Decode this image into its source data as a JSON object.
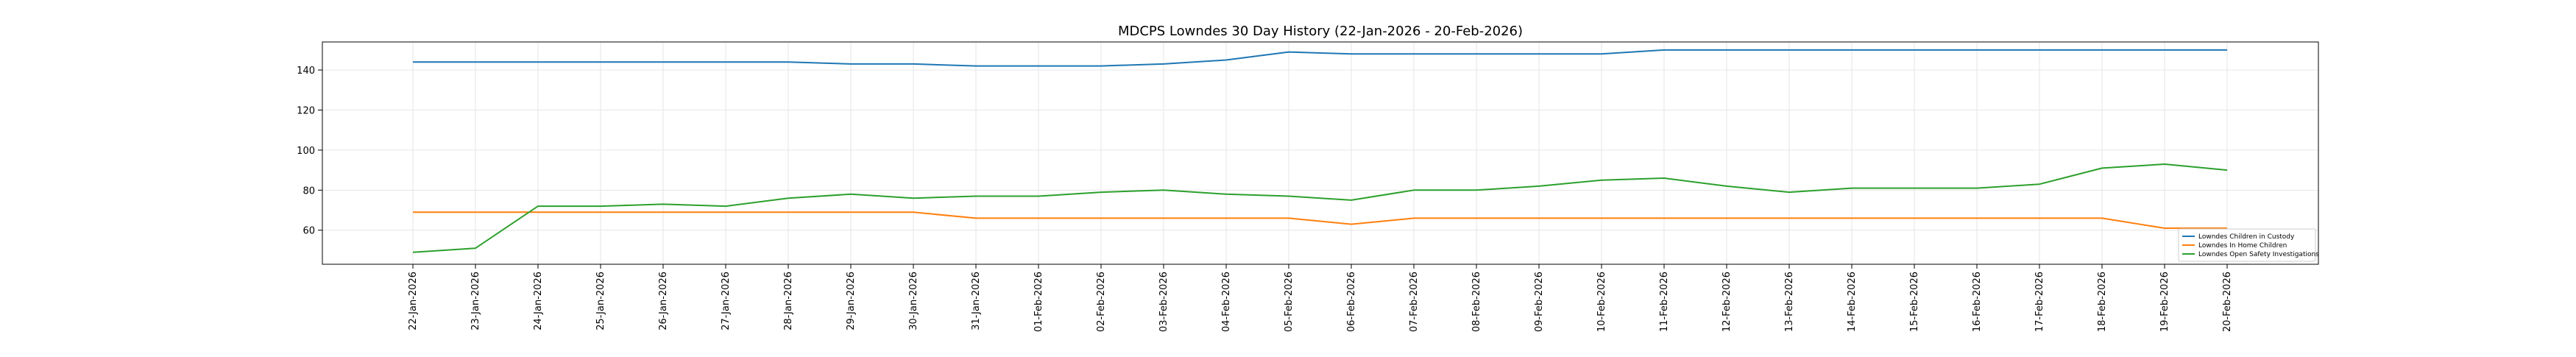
{
  "chart_data": {
    "type": "line",
    "title": "MDCPS Lowndes 30 Day History (22-Jan-2026 - 20-Feb-2026)",
    "xlabel": "",
    "ylabel": "",
    "x": [
      "22-Jan-2026",
      "23-Jan-2026",
      "24-Jan-2026",
      "25-Jan-2026",
      "26-Jan-2026",
      "27-Jan-2026",
      "28-Jan-2026",
      "29-Jan-2026",
      "30-Jan-2026",
      "31-Jan-2026",
      "01-Feb-2026",
      "02-Feb-2026",
      "03-Feb-2026",
      "04-Feb-2026",
      "05-Feb-2026",
      "06-Feb-2026",
      "07-Feb-2026",
      "08-Feb-2026",
      "09-Feb-2026",
      "10-Feb-2026",
      "11-Feb-2026",
      "12-Feb-2026",
      "13-Feb-2026",
      "14-Feb-2026",
      "15-Feb-2026",
      "16-Feb-2026",
      "17-Feb-2026",
      "18-Feb-2026",
      "19-Feb-2026",
      "20-Feb-2026"
    ],
    "ylim": [
      43,
      154
    ],
    "yticks": [
      60,
      80,
      100,
      120,
      140
    ],
    "grid": true,
    "legend_position": "lower-right",
    "series": [
      {
        "name": "Lowndes Children in Custody",
        "color": "#1f77b4",
        "values": [
          144,
          144,
          144,
          144,
          144,
          144,
          144,
          143,
          143,
          142,
          142,
          142,
          143,
          145,
          149,
          148,
          148,
          148,
          148,
          148,
          150,
          150,
          150,
          150,
          150,
          150,
          150,
          150,
          150,
          150
        ]
      },
      {
        "name": "Lowndes In Home Children",
        "color": "#ff7f0e",
        "values": [
          69,
          69,
          69,
          69,
          69,
          69,
          69,
          69,
          69,
          66,
          66,
          66,
          66,
          66,
          66,
          63,
          66,
          66,
          66,
          66,
          66,
          66,
          66,
          66,
          66,
          66,
          66,
          66,
          61,
          61
        ]
      },
      {
        "name": "Lowndes Open Safety Investigations",
        "color": "#2ca02c",
        "values": [
          49,
          51,
          72,
          72,
          73,
          72,
          76,
          78,
          76,
          77,
          77,
          79,
          80,
          78,
          77,
          75,
          80,
          80,
          82,
          85,
          86,
          82,
          79,
          81,
          81,
          81,
          83,
          91,
          93,
          90
        ]
      }
    ]
  }
}
